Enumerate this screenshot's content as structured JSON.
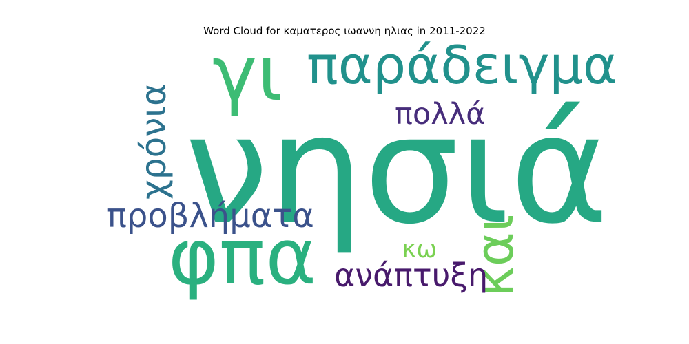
{
  "chart_data": {
    "type": "wordcloud",
    "title": "Word Cloud for καματερος ιωαννη ηλιας in 2011-2022",
    "words": [
      {
        "text": "νησιά",
        "rank": 1,
        "color": "#26a884"
      },
      {
        "text": "φπα",
        "rank": 2,
        "color": "#2ab07f"
      },
      {
        "text": "γι",
        "rank": 3,
        "color": "#3dbc74"
      },
      {
        "text": "παράδειγμα",
        "rank": 4,
        "color": "#21918c"
      },
      {
        "text": "και",
        "rank": 5,
        "color": "#6ccd5a"
      },
      {
        "text": "χρόνια",
        "rank": 6,
        "color": "#2c728e"
      },
      {
        "text": "προβλήματα",
        "rank": 7,
        "color": "#3b528b"
      },
      {
        "text": "ανάπτυξη",
        "rank": 8,
        "color": "#481a6c"
      },
      {
        "text": "πολλά",
        "rank": 9,
        "color": "#472d7b"
      },
      {
        "text": "κω",
        "rank": 10,
        "color": "#7ad151"
      }
    ]
  }
}
